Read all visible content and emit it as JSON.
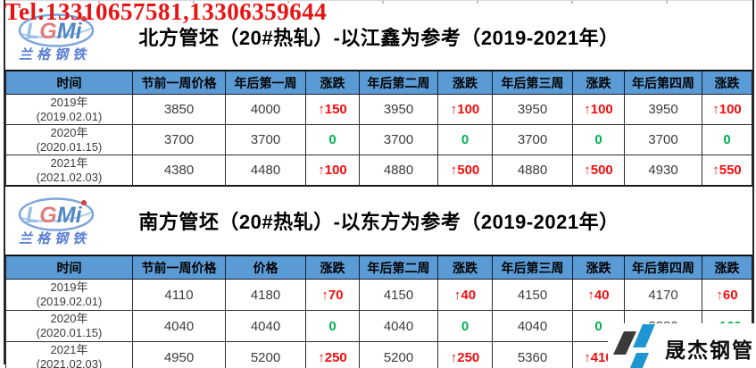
{
  "banner": {
    "tel": "Tel:13310657581,13306359644"
  },
  "lgmi_logo": {
    "letters": [
      "L",
      "G",
      "M",
      "i"
    ],
    "subtext": "兰格钢铁"
  },
  "watermark": {
    "text": "晟杰钢管"
  },
  "colors": {
    "header_bg": "#5B9BD5",
    "up_red": "#F50D0D",
    "down_green": "#00B050",
    "tel_red": "#E81414"
  },
  "tables": [
    {
      "title": "北方管坯（20#热轧）-以江鑫为参考（2019-2021年）",
      "headers": [
        "时间",
        "节前一周价格",
        "年后第一周",
        "涨跌",
        "年后第二周",
        "涨跌",
        "年后第三周",
        "涨跌",
        "年后第四周",
        "涨跌"
      ],
      "rows": [
        {
          "year": "2019年",
          "date": "(2019.02.01)",
          "values": [
            "3850",
            "4000",
            "↑150",
            "3950",
            "↑100",
            "3950",
            "↑100",
            "3950",
            "↑100"
          ],
          "styles": [
            "",
            "",
            "up",
            "",
            "up",
            "",
            "up",
            "",
            "up"
          ]
        },
        {
          "year": "2020年",
          "date": "(2020.01.15)",
          "values": [
            "3700",
            "3700",
            "0",
            "3700",
            "0",
            "3700",
            "0",
            "3700",
            "0"
          ],
          "styles": [
            "",
            "",
            "flat",
            "",
            "flat",
            "",
            "flat",
            "",
            "flat"
          ]
        },
        {
          "year": "2021年",
          "date": "(2021.02.03)",
          "values": [
            "4380",
            "4480",
            "↑100",
            "4880",
            "↑500",
            "4880",
            "↑500",
            "4930",
            "↑550"
          ],
          "styles": [
            "",
            "",
            "up",
            "",
            "up",
            "",
            "up",
            "",
            "up"
          ]
        }
      ]
    },
    {
      "title": "南方管坯（20#热轧）-以东方为参考（2019-2021年）",
      "headers": [
        "时间",
        "节前一周价格",
        "价格",
        "涨跌",
        "年后第二周",
        "涨跌",
        "年后第三周",
        "涨跌",
        "年后第四周",
        "涨跌"
      ],
      "rows": [
        {
          "year": "2019年",
          "date": "(2019.02.01)",
          "values": [
            "4110",
            "4180",
            "↑70",
            "4150",
            "↑40",
            "4150",
            "↑40",
            "4170",
            "↑60"
          ],
          "styles": [
            "",
            "",
            "up",
            "",
            "up",
            "",
            "up",
            "",
            "up"
          ]
        },
        {
          "year": "2020年",
          "date": "(2020.01.15)",
          "values": [
            "4040",
            "4040",
            "0",
            "4040",
            "0",
            "4040",
            "0",
            "3880",
            "↓160"
          ],
          "styles": [
            "",
            "",
            "flat",
            "",
            "flat",
            "",
            "flat",
            "",
            "down"
          ]
        },
        {
          "year": "2021年",
          "date": "(2021.02.03)",
          "values": [
            "4950",
            "5200",
            "↑250",
            "5200",
            "↑250",
            "5360",
            "↑410",
            "",
            ""
          ],
          "styles": [
            "",
            "",
            "up",
            "",
            "up",
            "",
            "up",
            "",
            ""
          ]
        }
      ]
    }
  ]
}
